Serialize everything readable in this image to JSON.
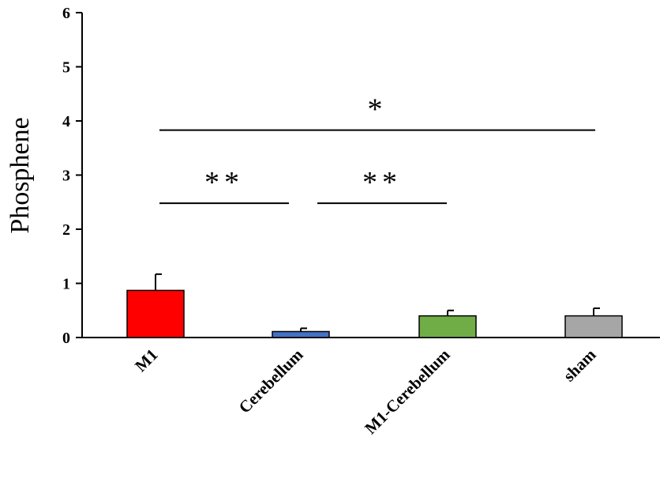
{
  "chart_data": {
    "type": "bar",
    "categories": [
      "M1",
      "Cerebellum",
      "M1-Cerebellum",
      "sham"
    ],
    "values": [
      0.87,
      0.11,
      0.4,
      0.4
    ],
    "errors": [
      0.3,
      0.06,
      0.1,
      0.14
    ],
    "colors": [
      "#ff0000",
      "#4472c4",
      "#70ad47",
      "#a6a6a6"
    ],
    "ylabel": "Phosphene",
    "ylim": [
      0,
      6
    ],
    "yticks": [
      "0",
      "1",
      "2",
      "3",
      "4",
      "5",
      "6"
    ],
    "grid": false,
    "significance": [
      {
        "from": 0,
        "to": 1,
        "label": "**",
        "y": 2.48
      },
      {
        "from": 1,
        "to": 2,
        "label": "**",
        "y": 2.48
      },
      {
        "from": 0,
        "to": 3,
        "label": "*",
        "y": 3.83
      }
    ]
  }
}
